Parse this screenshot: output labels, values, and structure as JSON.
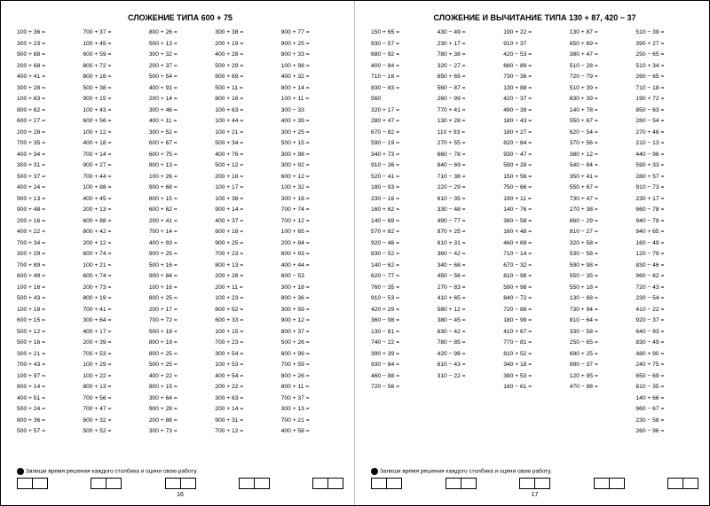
{
  "left": {
    "title": "СЛОЖЕНИЕ ТИПА 600 + 75",
    "footer": "Запиши время решения каждого столбика и оцени свою работу.",
    "pagenum": "16",
    "cols": [
      [
        "100 + 36 =",
        "300 + 23 =",
        "900 + 88 =",
        "200 + 68 =",
        "400 + 41 =",
        "300 + 28 =",
        "100 + 83 =",
        "800 + 62 =",
        "600 + 27 =",
        "200 + 28 =",
        "700 + 35 =",
        "400 + 34 =",
        "300 + 31 =",
        "500 + 37 =",
        "400 + 24 =",
        "900 + 13 =",
        "900 + 48 =",
        "200 + 16 =",
        "400 + 22 =",
        "700 + 34 =",
        "300 + 29 =",
        "700 + 89 =",
        "600 + 49 =",
        "100 + 16 =",
        "500 + 43 =",
        "100 + 18 =",
        "600 + 15 =",
        "500 + 12 =",
        "500 + 16 =",
        "300 + 21 =",
        "700 + 43 =",
        "100 + 97 =",
        "800 + 14 =",
        "400 + 51 =",
        "500 + 24 =",
        "800 + 36 =",
        "500 + 57 ="
      ],
      [
        "700 + 37 =",
        "100 + 45 =",
        "600 + 59 =",
        "800 + 72 =",
        "800 + 16 =",
        "500 + 38 =",
        "900 + 15 =",
        "100 + 43 =",
        "600 + 56 =",
        "100 + 12 =",
        "400 + 18 =",
        "700 + 14 =",
        "900 + 27 =",
        "700 + 44 =",
        "100 + 88 =",
        "400 + 45 =",
        "200 + 13 =",
        "600 + 88 =",
        "800 + 42 =",
        "200 + 12 =",
        "600 + 74 =",
        "100 + 21 =",
        "600 + 74 =",
        "200 + 73 =",
        "800 + 19 =",
        "700 + 41 =",
        "300 + 64 =",
        "400 + 17 =",
        "200 + 39 =",
        "700 + 53 =",
        "100 + 29 =",
        "100 + 22 =",
        "800 + 13 =",
        "700 + 56 =",
        "700 + 47 =",
        "600 + 32 =",
        "500 + 52 ="
      ],
      [
        "800 + 26 =",
        "500 + 13 =",
        "300 + 32 =",
        "200 + 37 =",
        "500 + 54 =",
        "400 + 91 =",
        "200 + 14 =",
        "300 + 46 =",
        "400 + 11 =",
        "300 + 52 =",
        "600 + 67 =",
        "600 + 75 =",
        "800 + 13 =",
        "100 + 26 =",
        "900 + 68 =",
        "800 + 15 =",
        "600 + 62 =",
        "200 + 41 =",
        "700 + 14 =",
        "400 + 93 =",
        "900 + 25 =",
        "500 + 16 =",
        "900 + 84 =",
        "100 + 16 =",
        "800 + 25 =",
        "200 + 17 =",
        "700 + 72 =",
        "500 + 18 =",
        "800 + 19 =",
        "800 + 25 =",
        "500 + 25 =",
        "400 + 22 =",
        "800 + 15 =",
        "300 + 64 =",
        "900 + 28 =",
        "200 + 88 =",
        "300 + 73 ="
      ],
      [
        "300 + 38 =",
        "200 + 19 =",
        "400 + 28 =",
        "500 + 29 =",
        "600 + 69 =",
        "500 + 11 =",
        "800 + 16 =",
        "100 + 63 =",
        "100 + 44 =",
        "100 + 21 =",
        "500 + 34 =",
        "400 + 76 =",
        "500 + 12 =",
        "200 + 18 =",
        "100 + 17 =",
        "100 + 38 =",
        "900 + 14 =",
        "400 + 37 =",
        "600 + 18 =",
        "900 + 25 =",
        "700 + 23 =",
        "800 + 13 =",
        "200 + 26 =",
        "200 + 11 =",
        "100 + 23 =",
        "800 + 52 =",
        "600 + 33 =",
        "100 + 15 =",
        "700 + 23 =",
        "300 + 54 =",
        "100 + 53 =",
        "400 + 54 =",
        "200 + 22 =",
        "300 + 63 =",
        "200 + 14 =",
        "900 + 31 =",
        "700 + 12 ="
      ],
      [
        "900 + 77 =",
        "900 + 25 =",
        "800 + 33 =",
        "100 + 98 =",
        "400 + 32 =",
        "800 + 14 =",
        "100 + 11 =",
        "300 − 33",
        "400 + 39 =",
        "300 + 25 =",
        "500 + 15 =",
        "300 + 98 =",
        "300 + 92 =",
        "600 + 12 =",
        "100 + 32 =",
        "300 + 18 =",
        "700 + 74 =",
        "700 + 12 =",
        "100 + 65 =",
        "200 + 84 =",
        "600 + 93 =",
        "400 + 44 =",
        "600 − 53",
        "300 + 18 =",
        "800 + 36 =",
        "300 + 59 =",
        "900 + 12 =",
        "800 + 37 =",
        "500 + 26 =",
        "600 + 99 =",
        "700 + 59 =",
        "800 + 26 =",
        "800 + 11 =",
        "700 + 37 =",
        "300 + 13 =",
        "700 + 21 =",
        "400 + 58 ="
      ]
    ]
  },
  "right": {
    "title": "СЛОЖЕНИЕ И ВЫЧИТАНИЕ ТИПА 130 + 87, 420 − 37",
    "footer": "Запиши время решения каждого столбика и оцени свою работу.",
    "pagenum": "17",
    "cols": [
      [
        "150 + 65 =",
        "930 − 57 =",
        "680 − 92 =",
        "400 − 84 =",
        "710 − 16 =",
        "830 − 83 =",
        "560",
        "320 + 17 =",
        "280 + 47 =",
        "670 − 82 =",
        "590 − 19 =",
        "340 + 73 =",
        "910 − 36 =",
        "520 − 41 =",
        "180 − 93 =",
        "230 − 16 =",
        "160 + 62 =",
        "140 − 69 =",
        "570 + 82 =",
        "920 − 46 =",
        "830 − 52 =",
        "140 − 62 =",
        "620 − 77 =",
        "760 − 35 =",
        "910 − 53 =",
        "420 + 29 =",
        "360 − 98 =",
        "130 − 81 =",
        "740 − 22 =",
        "390 + 39 =",
        "930 − 84 =",
        "460 − 88 =",
        "720 − 56 ="
      ],
      [
        "430 − 49 =",
        "230 + 17 =",
        "780 + 38 =",
        "320 − 27 =",
        "650 + 65 =",
        "560 − 87 =",
        "260 − 99 =",
        "770 + 41 =",
        "130 + 28 =",
        "110 + 93 =",
        "270 + 55 =",
        "660 − 78 =",
        "840 − 69 =",
        "710 − 38 =",
        "220 − 29 =",
        "610 − 35 =",
        "330 − 48 =",
        "490 − 77 =",
        "870 + 25 =",
        "610 + 31 =",
        "360 − 42 =",
        "340 − 68 =",
        "450 − 56 =",
        "270 − 83 =",
        "410 + 65 =",
        "580 + 12 =",
        "380 − 45 =",
        "630 − 42 =",
        "780 − 85 =",
        "420 − 98 =",
        "610 − 43 =",
        "310 − 22 ="
      ],
      [
        "190 + 22 =",
        "910 + 37",
        "420 − 53 =",
        "660 − 89 =",
        "730 − 36 =",
        "130 + 88 =",
        "420 − 37 =",
        "490 − 39 =",
        "180 − 43 =",
        "180 + 27 =",
        "820 − 64 =",
        "930 − 47 =",
        "590 + 28 =",
        "150 + 56 =",
        "750 − 66 =",
        "190 + 11 =",
        "140 − 76 =",
        "360 − 58 =",
        "160 + 48 =",
        "460 + 69 =",
        "710 − 14 =",
        "670 − 32 =",
        "810 − 98 =",
        "590 + 98 =",
        "840 − 72 =",
        "720 − 88 =",
        "180 − 99 =",
        "410 + 67 =",
        "770 − 81 =",
        "810 + 52 =",
        "340 + 18 =",
        "380 + 53 =",
        "160 − 61 ="
      ],
      [
        "130 + 87 =",
        "650 + 69 =",
        "380 + 47 =",
        "510 − 28 =",
        "720 − 79 =",
        "510 + 39 =",
        "830 + 39 =",
        "140 + 78 =",
        "550 + 67 =",
        "620 − 54 =",
        "370 + 56 =",
        "380 + 12 =",
        "540 − 84 =",
        "350 + 41 =",
        "550 + 67 =",
        "730 + 47 =",
        "270 + 38 =",
        "860 − 29 =",
        "810 − 27 =",
        "320 + 58 =",
        "530 − 58 =",
        "590 + 98 =",
        "550 − 35 =",
        "550 + 18 =",
        "130 − 68 =",
        "730 + 94 =",
        "810 − 64 =",
        "330 − 58 =",
        "250 − 65 =",
        "690 + 25 =",
        "990 − 37 =",
        "120 + 95 =",
        "470 − 98 ="
      ],
      [
        "510 − 39 =",
        "390 + 27 =",
        "250 − 65 =",
        "510 + 34 =",
        "260 − 65 =",
        "710 − 18 =",
        "190 + 72 =",
        "850 − 63 =",
        "280 − 54 =",
        "270 + 46 =",
        "210 − 13 =",
        "440 − 96 =",
        "590 + 33 =",
        "280 + 57 =",
        "910 − 73 =",
        "230 + 17 =",
        "660 − 78 =",
        "940 − 78 =",
        "940 + 65 =",
        "160 − 49 =",
        "120 − 79 =",
        "830 − 46 =",
        "960 − 82 =",
        "720 − 43 =",
        "230 − 54 =",
        "410 − 22 =",
        "920 − 37 =",
        "640 − 93 =",
        "830 − 49 =",
        "480 + 90 =",
        "240 + 75 =",
        "650 − 69 =",
        "810 − 35 =",
        "140 + 66 =",
        "960 − 67 =",
        "230 − 58 =",
        "260 − 96 ="
      ]
    ]
  }
}
